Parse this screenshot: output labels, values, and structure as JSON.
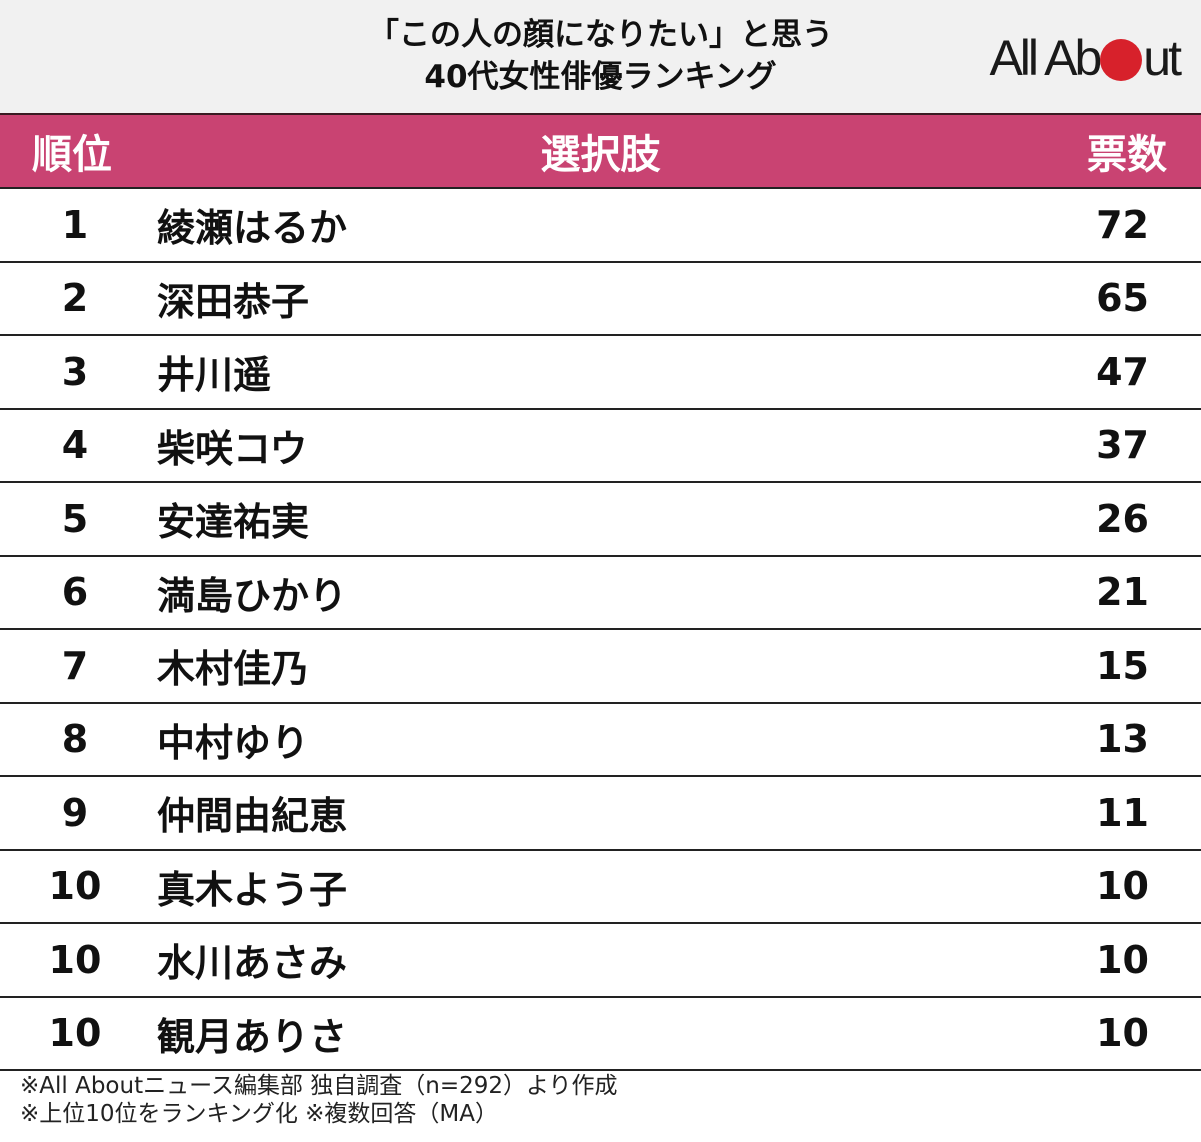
{
  "header": {
    "title_line1": "「この人の顔になりたい」と思う",
    "title_line2": "40代女性俳優ランキング",
    "logo": {
      "text_before": "All Ab",
      "text_after": "ut",
      "dot_color": "#d7212b"
    }
  },
  "columns": {
    "rank": "順位",
    "choice": "選択肢",
    "votes": "票数"
  },
  "colors": {
    "header_band": "#c94372",
    "title_bg": "#f1f1f1"
  },
  "rows": [
    {
      "rank": "1",
      "name": "綾瀬はるか",
      "votes": "72"
    },
    {
      "rank": "2",
      "name": "深田恭子",
      "votes": "65"
    },
    {
      "rank": "3",
      "name": "井川遥",
      "votes": "47"
    },
    {
      "rank": "4",
      "name": "柴咲コウ",
      "votes": "37"
    },
    {
      "rank": "5",
      "name": "安達祐実",
      "votes": "26"
    },
    {
      "rank": "6",
      "name": "満島ひかり",
      "votes": "21"
    },
    {
      "rank": "7",
      "name": "木村佳乃",
      "votes": "15"
    },
    {
      "rank": "8",
      "name": "中村ゆり",
      "votes": "13"
    },
    {
      "rank": "9",
      "name": "仲間由紀恵",
      "votes": "11"
    },
    {
      "rank": "10",
      "name": "真木よう子",
      "votes": "10"
    },
    {
      "rank": "10",
      "name": "水川あさみ",
      "votes": "10"
    },
    {
      "rank": "10",
      "name": "観月ありさ",
      "votes": "10"
    }
  ],
  "notes": [
    "※All Aboutニュース編集部 独自調査（n=292）より作成",
    "※上位10位をランキング化 ※複数回答（MA）"
  ],
  "chart_data": {
    "type": "table",
    "title": "「この人の顔になりたい」と思う 40代女性俳優ランキング",
    "columns": [
      "順位",
      "選択肢",
      "票数"
    ],
    "categories": [
      "綾瀬はるか",
      "深田恭子",
      "井川遥",
      "柴咲コウ",
      "安達祐実",
      "満島ひかり",
      "木村佳乃",
      "中村ゆり",
      "仲間由紀恵",
      "真木よう子",
      "水川あさみ",
      "観月ありさ"
    ],
    "ranks": [
      1,
      2,
      3,
      4,
      5,
      6,
      7,
      8,
      9,
      10,
      10,
      10
    ],
    "values": [
      72,
      65,
      47,
      37,
      26,
      21,
      15,
      13,
      11,
      10,
      10,
      10
    ],
    "ylabel": "票数",
    "sample_size": 292,
    "notes": [
      "※All Aboutニュース編集部 独自調査（n=292）より作成",
      "※上位10位をランキング化 ※複数回答（MA）"
    ]
  }
}
